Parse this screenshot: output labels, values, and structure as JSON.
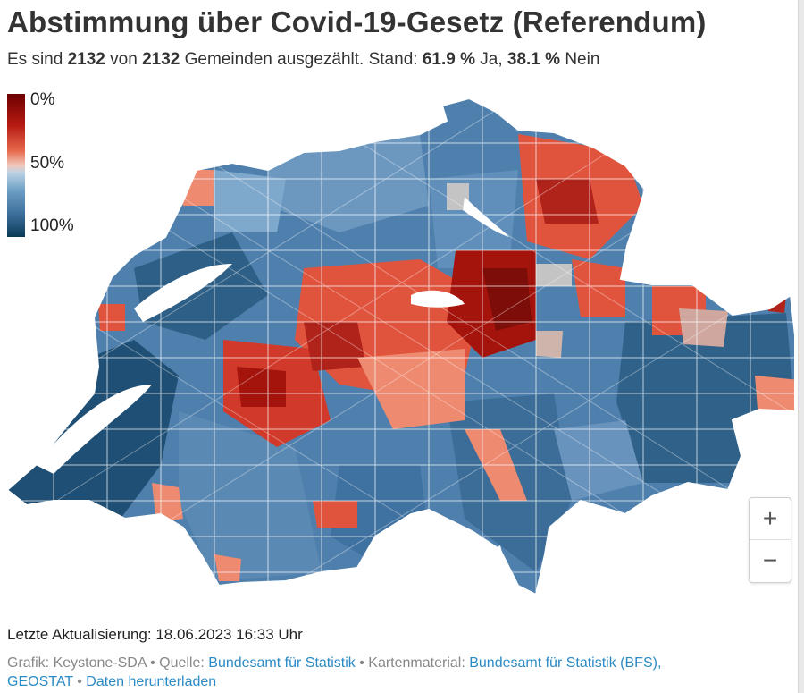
{
  "header": {
    "title": "Abstimmung über Covid-19-Gesetz (Referendum)",
    "sub_prefix": "Es sind ",
    "counted": "2132",
    "sub_mid": " von ",
    "total": "2132",
    "sub_mid2": " Gemeinden ausgezählt. Stand: ",
    "yes_pct": "61.9 %",
    "yes_word": " Ja, ",
    "no_pct": "38.1 %",
    "no_word": " Nein"
  },
  "legend": {
    "top": "0%",
    "mid": "50%",
    "bottom": "100%"
  },
  "colors": {
    "dark_red": "#a4140c",
    "red": "#e0543e",
    "light_red": "#ee8a6f",
    "neutral": "#cfc6c4",
    "light_blue": "#7fa9cc",
    "blue": "#4f80ad",
    "dark_blue": "#1f4f74",
    "lake": "#ffffff"
  },
  "zoom": {
    "in": "+",
    "out": "−"
  },
  "footer": {
    "updated": "Letzte Aktualisierung: 18.06.2023 16:33 Uhr",
    "grafik": "Grafik: Keystone-SDA",
    "sep1": " • Quelle: ",
    "quelle": "Bundesamt für Statistik",
    "sep2": " • Kartenmaterial: ",
    "karte1": "Bundesamt für Statistik (BFS),",
    "karte2": "GEOSTAT",
    "sep3": " • ",
    "download": "Daten herunterladen"
  }
}
